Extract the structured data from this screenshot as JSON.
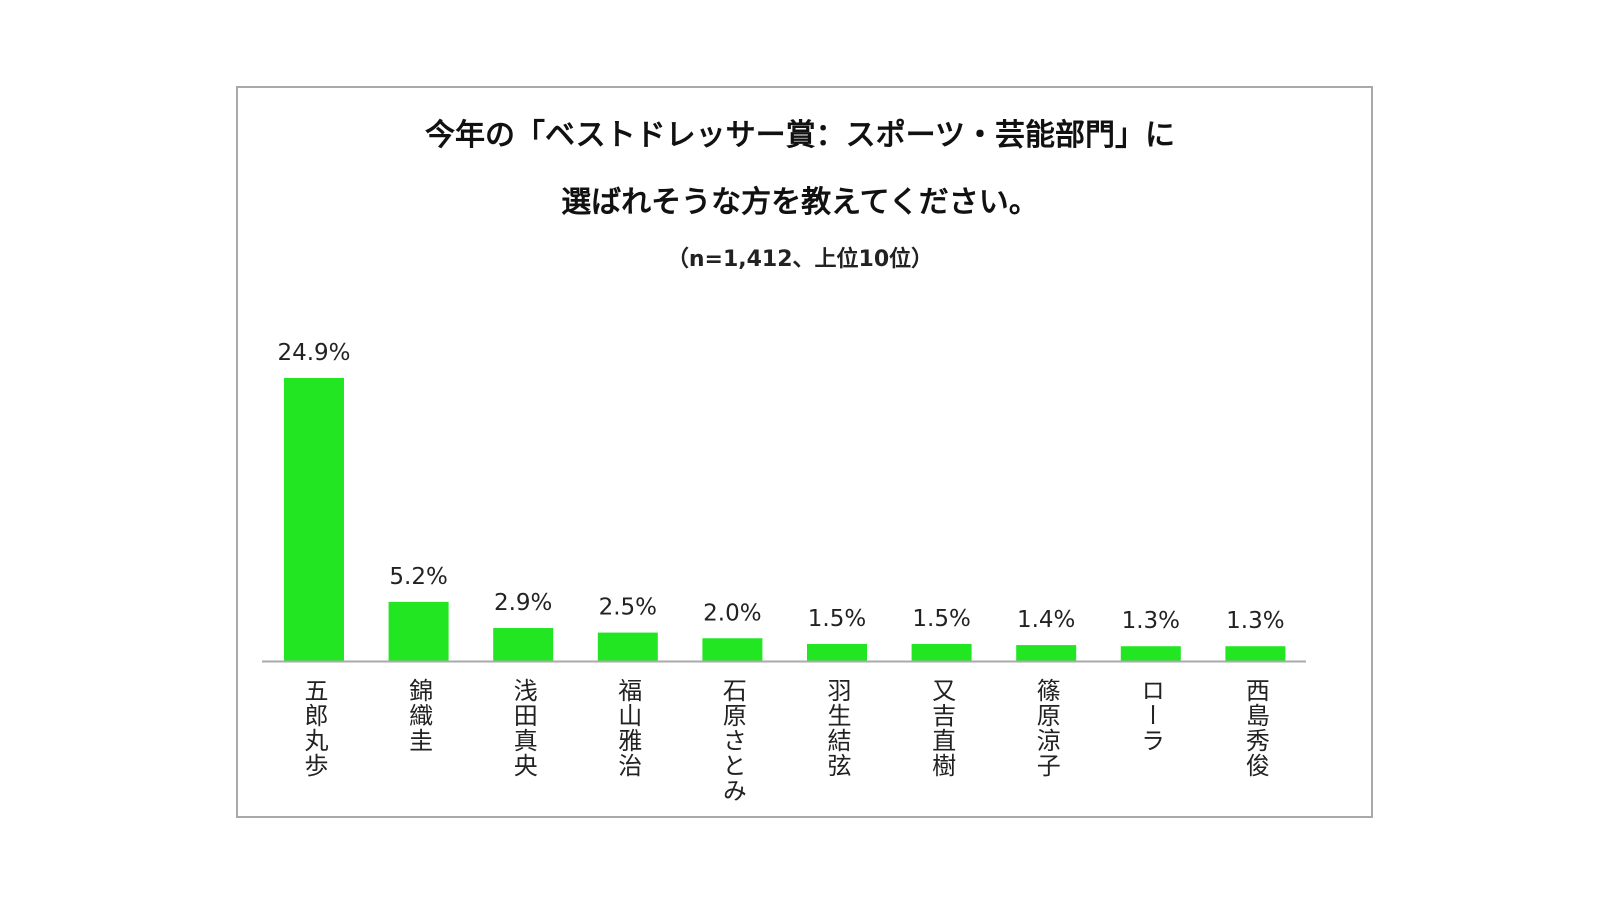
{
  "chart_data": {
    "type": "bar",
    "title": "今年の「ベストドレッサー賞：スポーツ・芸能部門」に 選ばれそうな方を教えてください。",
    "title_lines": [
      "今年の「ベストドレッサー賞：スポーツ・芸能部門」に",
      "選ばれそうな方を教えてください。"
    ],
    "subtitle": "（n=1,412、上位10位）",
    "categories": [
      "五郎丸歩",
      "錦織圭",
      "浅田真央",
      "福山雅治",
      "石原さとみ",
      "羽生結弦",
      "又吉直樹",
      "篠原涼子",
      "ローラ",
      "西島秀俊"
    ],
    "values": [
      24.9,
      5.2,
      2.9,
      2.5,
      2.0,
      1.5,
      1.5,
      1.4,
      1.3,
      1.3
    ],
    "value_labels": [
      "24.9%",
      "5.2%",
      "2.9%",
      "2.5%",
      "2.0%",
      "1.5%",
      "1.5%",
      "1.4%",
      "1.3%",
      "1.3%"
    ],
    "xlabel": "",
    "ylabel": "",
    "ylim": [
      0,
      25
    ],
    "grid": false,
    "legend": "none",
    "bar_color": "#22e622",
    "axis_color": "#aaaaaa"
  }
}
